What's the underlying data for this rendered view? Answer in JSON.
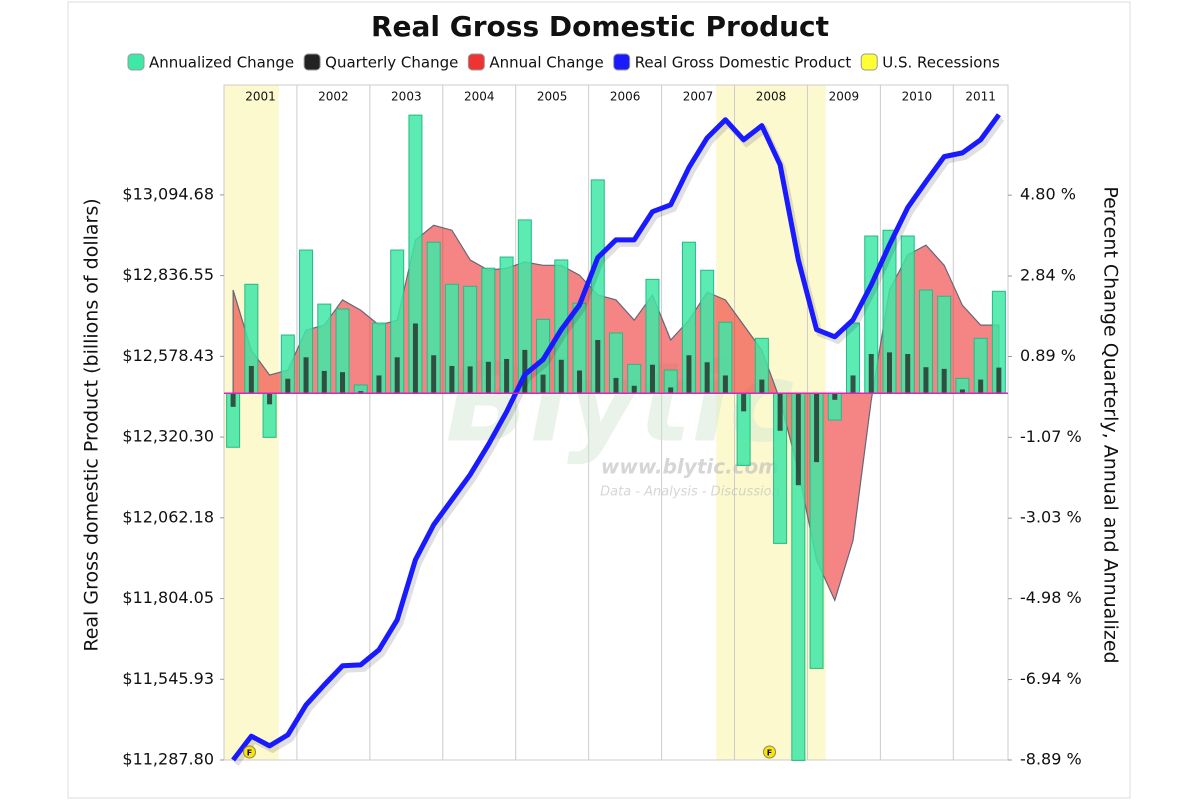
{
  "chart_data": {
    "type": "combo",
    "title": "Real Gross Domestic Product",
    "y_label": "Real Gross domestic Product (billions of dollars)",
    "y2_label": "Percent Change Quarterly, Annual and Annualized",
    "x": [
      2001.125,
      2001.375,
      2001.625,
      2001.875,
      2002.125,
      2002.375,
      2002.625,
      2002.875,
      2003.125,
      2003.375,
      2003.625,
      2003.875,
      2004.125,
      2004.375,
      2004.625,
      2004.875,
      2005.125,
      2005.375,
      2005.625,
      2005.875,
      2006.125,
      2006.375,
      2006.625,
      2006.875,
      2007.125,
      2007.375,
      2007.625,
      2007.875,
      2008.125,
      2008.375,
      2008.625,
      2008.875,
      2009.125,
      2009.375,
      2009.625,
      2009.875,
      2010.125,
      2010.375,
      2010.625,
      2010.875,
      2011.125,
      2011.375,
      2011.625
    ],
    "xlim": [
      2001,
      2011.75
    ],
    "xticks": [
      2001,
      2002,
      2003,
      2004,
      2005,
      2006,
      2007,
      2008,
      2009,
      2010,
      2011
    ],
    "ylim": [
      11287.8,
      13446
    ],
    "yticks": [
      {
        "value": 11287.8,
        "label": "$11,287.80"
      },
      {
        "value": 11545.93,
        "label": "$11,545.93"
      },
      {
        "value": 11804.05,
        "label": "$11,804.05"
      },
      {
        "value": 12062.18,
        "label": "$12,062.18"
      },
      {
        "value": 12320.3,
        "label": "$12,320.30"
      },
      {
        "value": 12578.43,
        "label": "$12,578.43"
      },
      {
        "value": 12836.55,
        "label": "$12,836.55"
      },
      {
        "value": 13094.68,
        "label": "$13,094.68"
      }
    ],
    "y2lim": [
      -8.89,
      7.47
    ],
    "y2ticks": [
      {
        "value": -8.89,
        "label": "-8.89 %"
      },
      {
        "value": -6.94,
        "label": "-6.94 %"
      },
      {
        "value": -4.98,
        "label": "-4.98 %"
      },
      {
        "value": -3.03,
        "label": "-3.03 %"
      },
      {
        "value": -1.07,
        "label": "-1.07 %"
      },
      {
        "value": 0.89,
        "label": "0.89 %"
      },
      {
        "value": 2.84,
        "label": "2.84 %"
      },
      {
        "value": 4.8,
        "label": "4.80 %"
      }
    ],
    "recessions": {
      "name": "U.S. Recessions",
      "color": "#ffff33",
      "band_color": "#fcf9cf",
      "ranges": [
        [
          2001.0,
          2001.75
        ],
        [
          2007.75,
          2009.25
        ]
      ]
    },
    "series": [
      {
        "name": "Annualized Change",
        "type": "bar",
        "axis": "y2",
        "color": "#3ee8a6",
        "values": [
          -1.31,
          2.64,
          -1.07,
          1.41,
          3.47,
          2.16,
          2.04,
          0.2,
          1.7,
          3.47,
          6.74,
          3.66,
          2.64,
          2.59,
          3.03,
          3.3,
          4.2,
          1.79,
          3.23,
          2.18,
          5.17,
          1.46,
          0.7,
          2.76,
          0.56,
          3.66,
          2.98,
          1.72,
          -1.75,
          1.33,
          -3.64,
          -8.9,
          -6.67,
          -0.65,
          1.7,
          3.81,
          3.95,
          3.81,
          2.5,
          2.35,
          0.36,
          1.33,
          2.47
        ]
      },
      {
        "name": "Quarterly Change",
        "type": "bar",
        "axis": "y2",
        "color": "#222222",
        "values": [
          -0.33,
          0.66,
          -0.27,
          0.35,
          0.87,
          0.54,
          0.51,
          0.05,
          0.43,
          0.87,
          1.69,
          0.92,
          0.66,
          0.65,
          0.76,
          0.83,
          1.05,
          0.45,
          0.81,
          0.55,
          1.29,
          0.37,
          0.18,
          0.69,
          0.14,
          0.92,
          0.75,
          0.43,
          -0.44,
          0.33,
          -0.91,
          -2.23,
          -1.67,
          -0.16,
          0.43,
          0.95,
          0.99,
          0.95,
          0.63,
          0.59,
          0.09,
          0.33,
          0.62
        ]
      },
      {
        "name": "Annual Change",
        "type": "area",
        "axis": "y2",
        "color": "#ee3333",
        "values": [
          2.5,
          1.04,
          0.44,
          0.56,
          1.53,
          1.65,
          2.26,
          2.01,
          1.65,
          1.77,
          3.71,
          4.07,
          3.95,
          3.23,
          2.98,
          3.03,
          3.18,
          3.1,
          3.1,
          2.86,
          2.38,
          2.26,
          1.77,
          2.38,
          1.29,
          1.77,
          2.45,
          2.26,
          1.65,
          1.04,
          -0.17,
          -1.87,
          -4.05,
          -5.02,
          -3.57,
          -0.17,
          2.5,
          3.35,
          3.59,
          3.1,
          2.13,
          1.65,
          1.65
        ]
      },
      {
        "name": "Real Gross Domestic Product",
        "type": "line",
        "color": "#1a1aff",
        "values": [
          11287.8,
          11364,
          11333,
          11368,
          11464,
          11528,
          11589,
          11592,
          11640,
          11736,
          11928,
          12040,
          12120,
          12200,
          12296,
          12401,
          12520,
          12568,
          12664,
          12743,
          12894,
          12951,
          12951,
          13041,
          13063,
          13182,
          13277,
          13335,
          13271,
          13316,
          13191,
          12887,
          12664,
          12641,
          12695,
          12807,
          12935,
          13054,
          13137,
          13217,
          13229,
          13271,
          13351
        ]
      }
    ],
    "annotations": [
      {
        "label": "F",
        "x": 2001.35
      },
      {
        "label": "F",
        "x": 2008.48
      }
    ],
    "watermark": {
      "logo": "Blytic",
      "url": "www.blytic.com",
      "tagline": "Data - Analysis - Discussion"
    }
  }
}
